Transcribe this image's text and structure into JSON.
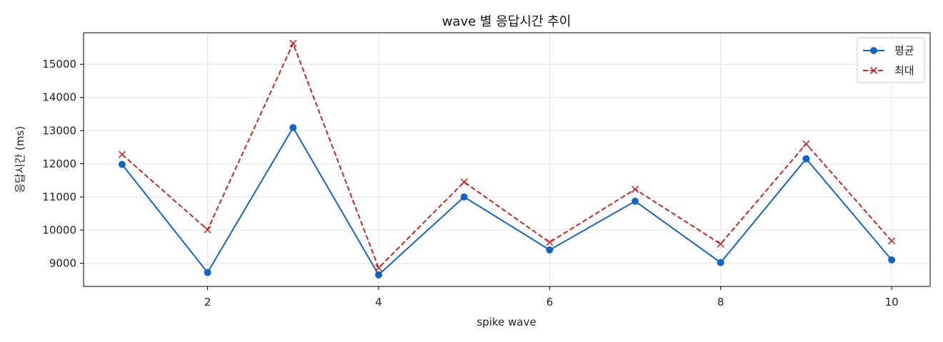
{
  "chart_data": {
    "type": "line",
    "title": "wave 별 응답시간 추이",
    "xlabel": "spike wave",
    "ylabel": "응답시간 (ms)",
    "x": [
      1,
      2,
      3,
      4,
      5,
      6,
      7,
      8,
      9,
      10
    ],
    "xlim": [
      0.55,
      10.45
    ],
    "ylim": [
      8300,
      15950
    ],
    "x_ticks": [
      2,
      4,
      6,
      8,
      10
    ],
    "y_ticks": [
      9000,
      10000,
      11000,
      12000,
      13000,
      14000,
      15000
    ],
    "grid": true,
    "legend_position": "top-right",
    "series": [
      {
        "name": "평균",
        "values": [
          11980,
          8720,
          13090,
          8650,
          11000,
          9400,
          10870,
          9020,
          12150,
          9100
        ],
        "color": "#1565c0",
        "line_style": "solid",
        "marker": "circle"
      },
      {
        "name": "최대",
        "values": [
          12280,
          10010,
          15630,
          8860,
          11450,
          9630,
          11230,
          9580,
          12600,
          9670
        ],
        "color": "#c62828",
        "line_style": "dashed",
        "marker": "x"
      }
    ]
  }
}
